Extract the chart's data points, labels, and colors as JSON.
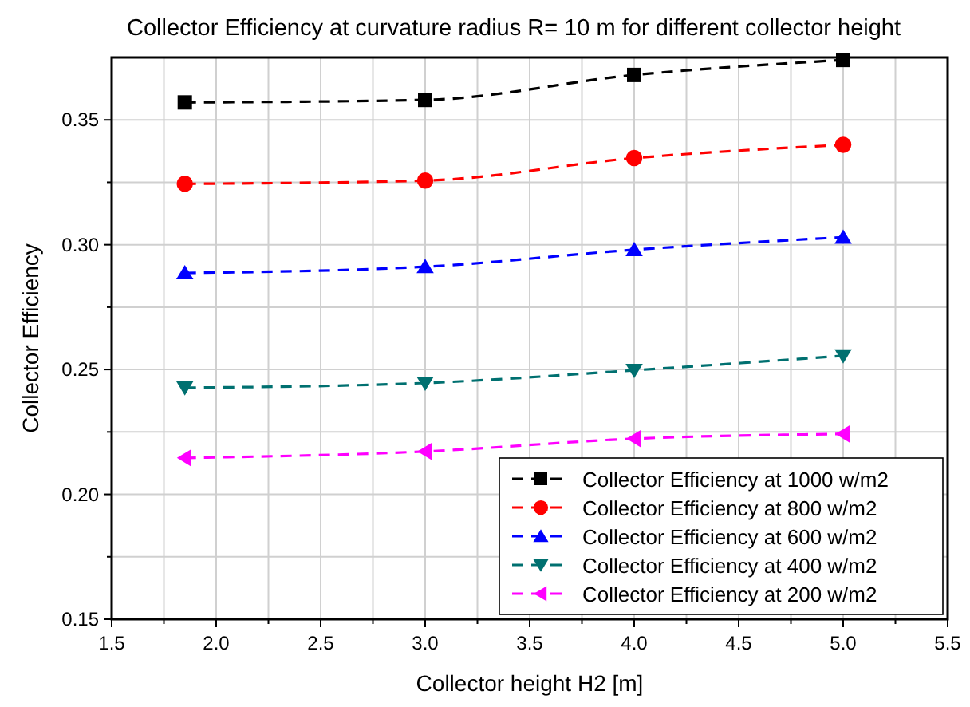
{
  "chart_data": {
    "type": "line",
    "title": "Collector Efficiency at curvature radius R= 10 m for different collector height",
    "xlabel": "Collector height H2 [m]",
    "ylabel": "Collector Efficiency",
    "x": [
      1.85,
      3.0,
      4.0,
      5.0
    ],
    "series": [
      {
        "name": "Collector Efficiency at 1000 w/m2",
        "color": "#000000",
        "marker": "square",
        "values": [
          0.357,
          0.358,
          0.368,
          0.374
        ]
      },
      {
        "name": "Collector Efficiency at 800 w/m2",
        "color": "#ff0000",
        "marker": "circle",
        "values": [
          0.3244,
          0.3257,
          0.3347,
          0.34
        ]
      },
      {
        "name": "Collector Efficiency at 600 w/m2",
        "color": "#0000ff",
        "marker": "triangle",
        "values": [
          0.2887,
          0.2912,
          0.298,
          0.303
        ]
      },
      {
        "name": "Collector Efficiency at 400 w/m2",
        "color": "#007070",
        "marker": "triangle-down",
        "values": [
          0.2427,
          0.2446,
          0.2497,
          0.2555
        ]
      },
      {
        "name": "Collector Efficiency at 200 w/m2",
        "color": "#ff00ff",
        "marker": "triangle-left",
        "values": [
          0.2146,
          0.2172,
          0.2223,
          0.2242
        ]
      }
    ],
    "xlim": [
      1.5,
      5.5
    ],
    "ylim": [
      0.15,
      0.375
    ],
    "xticks": [
      {
        "value": 1.5,
        "label": "1.5"
      },
      {
        "value": 1.75,
        "label": null
      },
      {
        "value": 2.0,
        "label": "2.0"
      },
      {
        "value": 2.25,
        "label": null
      },
      {
        "value": 2.5,
        "label": "2.5"
      },
      {
        "value": 2.75,
        "label": null
      },
      {
        "value": 3.0,
        "label": "3.0"
      },
      {
        "value": 3.25,
        "label": null
      },
      {
        "value": 3.5,
        "label": "3.5"
      },
      {
        "value": 3.75,
        "label": null
      },
      {
        "value": 4.0,
        "label": "4.0"
      },
      {
        "value": 4.25,
        "label": null
      },
      {
        "value": 4.5,
        "label": "4.5"
      },
      {
        "value": 4.75,
        "label": null
      },
      {
        "value": 5.0,
        "label": "5.0"
      },
      {
        "value": 5.25,
        "label": null
      },
      {
        "value": 5.5,
        "label": "5.5"
      }
    ],
    "yticks": [
      {
        "value": 0.15,
        "label": "0.15"
      },
      {
        "value": 0.175,
        "label": null
      },
      {
        "value": 0.2,
        "label": "0.20"
      },
      {
        "value": 0.225,
        "label": null
      },
      {
        "value": 0.25,
        "label": "0.25"
      },
      {
        "value": 0.275,
        "label": null
      },
      {
        "value": 0.3,
        "label": "0.30"
      },
      {
        "value": 0.325,
        "label": null
      },
      {
        "value": 0.35,
        "label": "0.35"
      }
    ],
    "grid": true,
    "legend": "bottom right",
    "line_style": "dashed"
  }
}
